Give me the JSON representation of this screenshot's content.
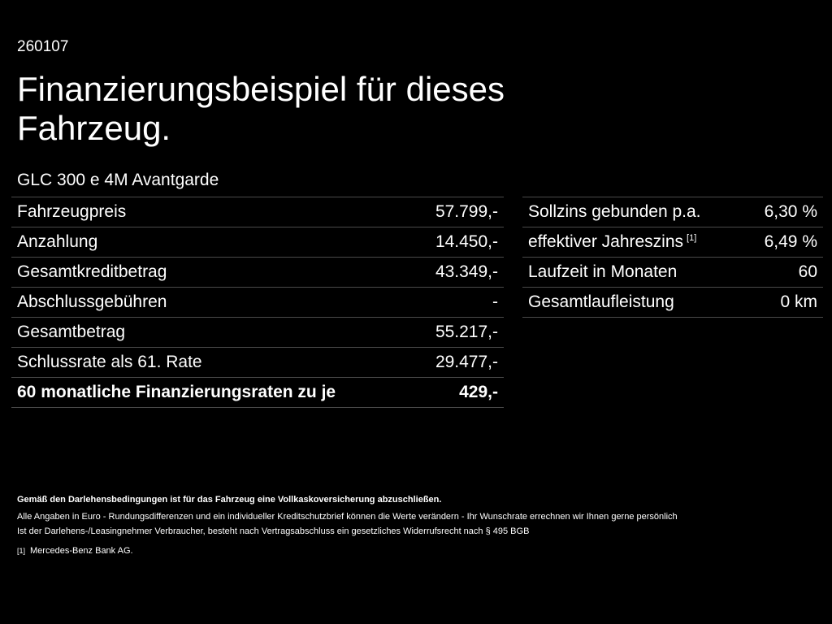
{
  "code": "260107",
  "headline": "Finanzierungsbeispiel für dieses Fahrzeug.",
  "model": "GLC 300 e 4M Avantgarde",
  "left_rows": [
    {
      "label": "Fahrzeugpreis",
      "value": "57.799,-"
    },
    {
      "label": "Anzahlung",
      "value": "14.450,-"
    },
    {
      "label": "Gesamtkreditbetrag",
      "value": "43.349,-"
    },
    {
      "label": "Abschlussgebühren",
      "value": "-"
    },
    {
      "label": "Gesamtbetrag",
      "value": "55.217,-"
    },
    {
      "label": "Schlussrate als 61. Rate",
      "value": "29.477,-"
    },
    {
      "label": "60 monatliche Finanzierungsraten zu je",
      "value": "429,-"
    }
  ],
  "right_rows": [
    {
      "label": "Sollzins gebunden p.a.",
      "value": "6,30 %"
    },
    {
      "label": "effektiver Jahreszins",
      "footnote": "[1]",
      "value": "6,49 %"
    },
    {
      "label": "Laufzeit in Monaten",
      "value": "60"
    },
    {
      "label": "Gesamtlaufleistung",
      "value": "0 km"
    }
  ],
  "footer": {
    "insurance_note": "Gemäß den Darlehensbedingungen ist für das Fahrzeug eine Vollkaskoversicherung abzuschließen.",
    "line1": "Alle Angaben in Euro - Rundungsdifferenzen und ein individueller Kreditschutzbrief können die Werte verändern - Ihr Wunschrate errechnen wir Ihnen gerne persönlich",
    "line2": "Ist der Darlehens-/Leasingnehmer Verbraucher, besteht nach Vertragsabschluss ein gesetzliches Widerrufsrecht nach § 495 BGB",
    "footnote_mark": "[1]",
    "footnote_text": "Mercedes-Benz Bank AG."
  }
}
